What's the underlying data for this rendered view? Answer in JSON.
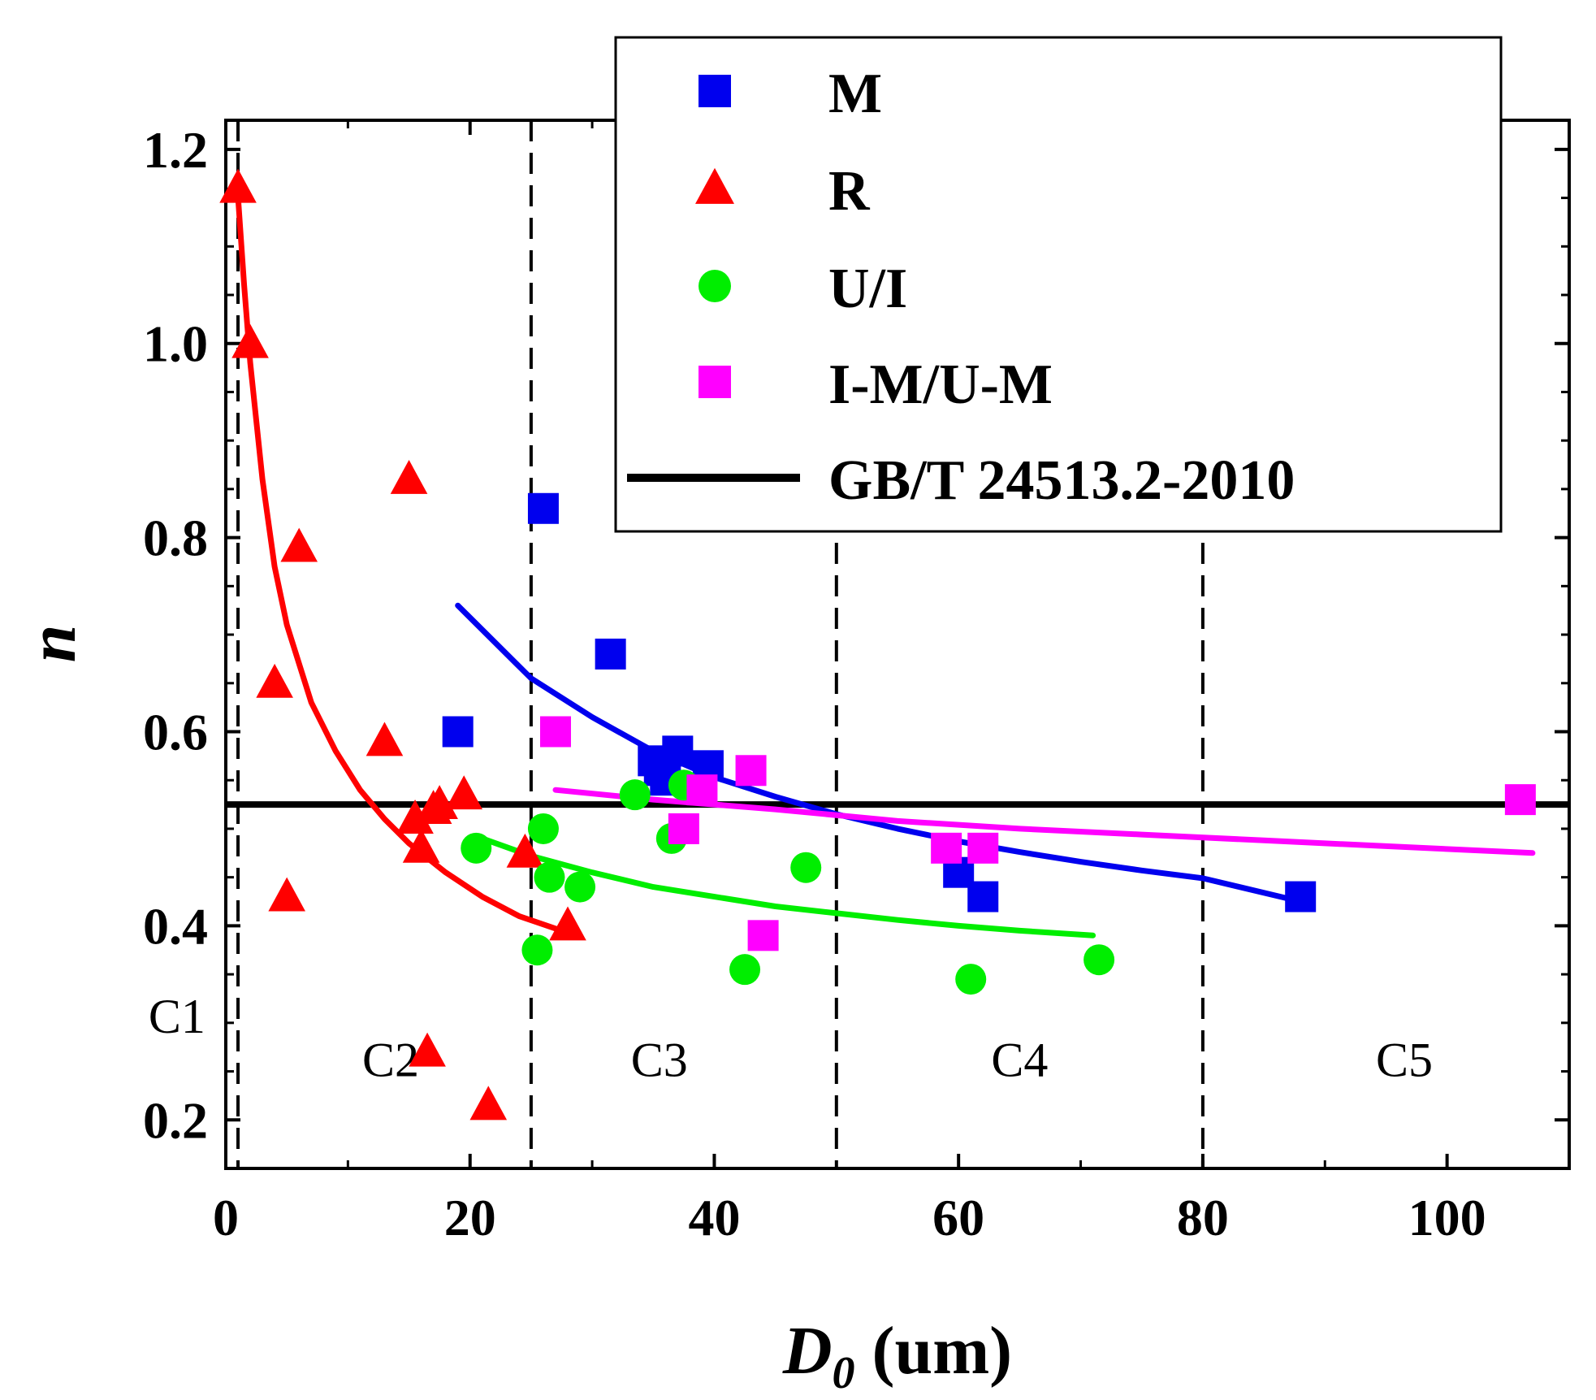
{
  "chart_data": {
    "type": "scatter",
    "title": "",
    "xlabel_main": "D",
    "xlabel_sub": "0",
    "xlabel_unit": " (um)",
    "ylabel": "n",
    "xlim": [
      0,
      110
    ],
    "ylim": [
      0.15,
      1.23
    ],
    "xticks": [
      0,
      20,
      40,
      60,
      80,
      100
    ],
    "yticks": [
      0.2,
      0.4,
      0.6,
      0.8,
      1.0,
      1.2
    ],
    "xtick_labels": [
      "0",
      "20",
      "40",
      "60",
      "80",
      "100"
    ],
    "ytick_labels": [
      "0.2",
      "0.4",
      "0.6",
      "0.8",
      "1.0",
      "1.2"
    ],
    "region_boundaries": [
      1,
      25,
      50,
      80
    ],
    "regions": [
      {
        "label": "C1",
        "x": -4,
        "y": 0.29
      },
      {
        "label": "C2",
        "x": 13.5,
        "y": 0.245
      },
      {
        "label": "C3",
        "x": 35.5,
        "y": 0.245
      },
      {
        "label": "C4",
        "x": 65,
        "y": 0.245
      },
      {
        "label": "C5",
        "x": 96.5,
        "y": 0.245
      }
    ],
    "reference_line": {
      "name": "GB/T 24513.2-2010",
      "y": 0.525,
      "color": "#000000"
    },
    "series": [
      {
        "name": "M",
        "marker": "square",
        "color": "#0000ee",
        "points": [
          [
            19,
            0.6
          ],
          [
            26,
            0.83
          ],
          [
            31.5,
            0.68
          ],
          [
            35,
            0.57
          ],
          [
            35.5,
            0.56
          ],
          [
            36,
            0.55
          ],
          [
            37,
            0.58
          ],
          [
            39.5,
            0.565
          ],
          [
            60,
            0.455
          ],
          [
            62,
            0.43
          ],
          [
            88,
            0.43
          ]
        ],
        "fit": [
          [
            19,
            0.73
          ],
          [
            25,
            0.655
          ],
          [
            30,
            0.615
          ],
          [
            35,
            0.58
          ],
          [
            40,
            0.553
          ],
          [
            45,
            0.533
          ],
          [
            50,
            0.515
          ],
          [
            55,
            0.5
          ],
          [
            60,
            0.487
          ],
          [
            65,
            0.476
          ],
          [
            70,
            0.466
          ],
          [
            75,
            0.457
          ],
          [
            80,
            0.449
          ],
          [
            88,
            0.425
          ]
        ]
      },
      {
        "name": "R",
        "marker": "triangle",
        "color": "#ff0000",
        "points": [
          [
            1,
            1.16
          ],
          [
            2,
            1.0
          ],
          [
            4,
            0.65
          ],
          [
            5,
            0.43
          ],
          [
            6,
            0.79
          ],
          [
            13,
            0.59
          ],
          [
            15,
            0.86
          ],
          [
            15.5,
            0.51
          ],
          [
            16,
            0.48
          ],
          [
            16.5,
            0.27
          ],
          [
            17,
            0.52
          ],
          [
            17.5,
            0.525
          ],
          [
            19.5,
            0.535
          ],
          [
            21.5,
            0.215
          ],
          [
            24.5,
            0.475
          ],
          [
            28,
            0.4
          ]
        ],
        "fit": [
          [
            0.9,
            1.17
          ],
          [
            1.5,
            1.06
          ],
          [
            2,
            0.98
          ],
          [
            3,
            0.86
          ],
          [
            4,
            0.77
          ],
          [
            5,
            0.71
          ],
          [
            7,
            0.63
          ],
          [
            9,
            0.58
          ],
          [
            11,
            0.54
          ],
          [
            13,
            0.51
          ],
          [
            15,
            0.485
          ],
          [
            18,
            0.455
          ],
          [
            21,
            0.43
          ],
          [
            24,
            0.41
          ],
          [
            27.5,
            0.395
          ]
        ]
      },
      {
        "name": "U/I",
        "marker": "circle",
        "color": "#00ee00",
        "points": [
          [
            20.5,
            0.48
          ],
          [
            25.5,
            0.375
          ],
          [
            26,
            0.5
          ],
          [
            26.5,
            0.45
          ],
          [
            29,
            0.44
          ],
          [
            33.5,
            0.535
          ],
          [
            36.5,
            0.49
          ],
          [
            37.5,
            0.545
          ],
          [
            42.5,
            0.355
          ],
          [
            47.5,
            0.46
          ],
          [
            61,
            0.345
          ],
          [
            71.5,
            0.365
          ]
        ],
        "fit": [
          [
            21,
            0.49
          ],
          [
            25,
            0.472
          ],
          [
            30,
            0.455
          ],
          [
            35,
            0.44
          ],
          [
            40,
            0.43
          ],
          [
            45,
            0.42
          ],
          [
            50,
            0.413
          ],
          [
            55,
            0.406
          ],
          [
            60,
            0.4
          ],
          [
            65,
            0.395
          ],
          [
            71,
            0.39
          ]
        ]
      },
      {
        "name": "I-M/U-M",
        "marker": "square",
        "color": "#ff00ff",
        "points": [
          [
            27,
            0.6
          ],
          [
            37.5,
            0.5
          ],
          [
            39,
            0.54
          ],
          [
            43,
            0.56
          ],
          [
            44,
            0.39
          ],
          [
            59,
            0.48
          ],
          [
            62,
            0.48
          ],
          [
            106,
            0.53
          ]
        ],
        "fit": [
          [
            27,
            0.54
          ],
          [
            35,
            0.53
          ],
          [
            45,
            0.52
          ],
          [
            55,
            0.508
          ],
          [
            65,
            0.5
          ],
          [
            75,
            0.494
          ],
          [
            85,
            0.488
          ],
          [
            95,
            0.482
          ],
          [
            107,
            0.475
          ]
        ]
      }
    ],
    "legend": {
      "location": "top-right",
      "entries": [
        "M",
        "R",
        "U/I",
        "I-M/U-M",
        "GB/T 24513.2-2010"
      ]
    }
  }
}
